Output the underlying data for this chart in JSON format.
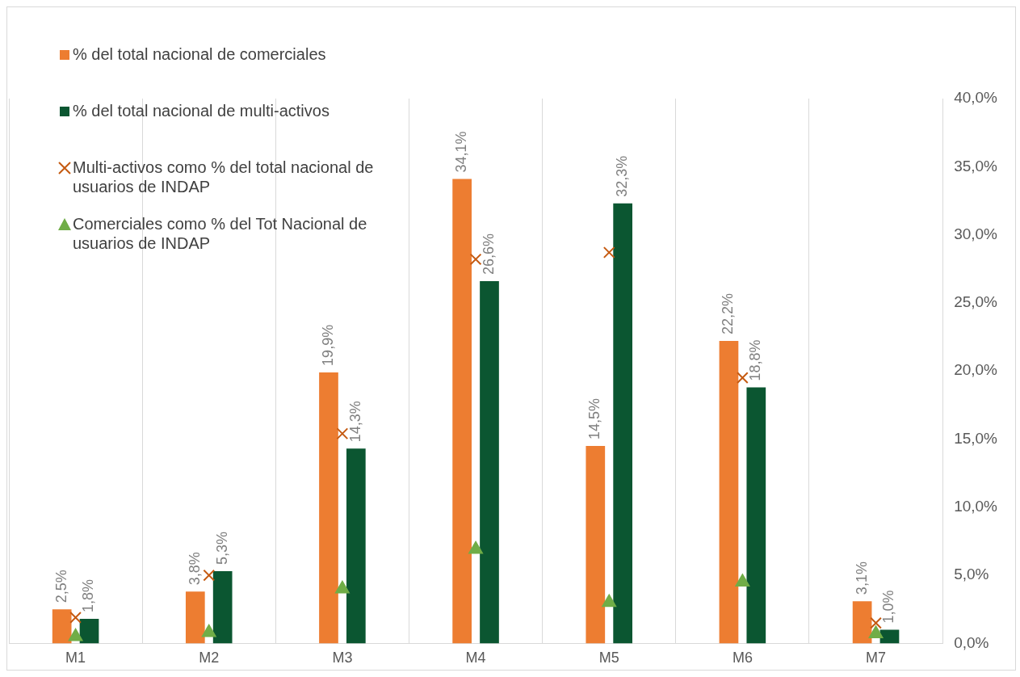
{
  "chart_data": {
    "type": "bar",
    "categories": [
      "M1",
      "M2",
      "M3",
      "M4",
      "M5",
      "M6",
      "M7"
    ],
    "series": [
      {
        "name": "% del total nacional de comerciales",
        "color": "#ed7d31",
        "values": [
          2.5,
          3.8,
          19.9,
          34.1,
          14.5,
          22.2,
          3.1
        ],
        "value_labels": [
          "2,5%",
          "3,8%",
          "19,9%",
          "34,1%",
          "14,5%",
          "22,2%",
          "3,1%"
        ]
      },
      {
        "name": "% del total nacional de multi-activos",
        "color": "#0b5631",
        "values": [
          1.8,
          5.3,
          14.3,
          26.6,
          32.3,
          18.8,
          1.0
        ],
        "value_labels": [
          "1,8%",
          "5,3%",
          "14,3%",
          "26,6%",
          "32,3%",
          "18,8%",
          "1,0%"
        ]
      },
      {
        "name": "Multi-activos como % del total nacional de usuarios de INDAP",
        "type": "scatter",
        "marker": "cross",
        "color": "#c55a11",
        "x": [
          "M1",
          "M2",
          "M3",
          "M4",
          "M5",
          "M6",
          "M7"
        ],
        "values": [
          1.9,
          5.0,
          15.4,
          28.2,
          28.7,
          19.5,
          1.5
        ]
      },
      {
        "name": "Comerciales como % del Tot Nacional de usuarios de INDAP",
        "type": "scatter",
        "marker": "triangle",
        "color": "#70ad47",
        "x": [
          "M1",
          "M2",
          "M3",
          "M4",
          "M5",
          "M6",
          "M7"
        ],
        "values": [
          0.5,
          0.8,
          4.0,
          6.9,
          3.0,
          4.5,
          0.7
        ]
      }
    ],
    "ylim": [
      0,
      40
    ],
    "yticks": [
      {
        "value": 0,
        "label": "0,0%"
      },
      {
        "value": 5,
        "label": "5,0%"
      },
      {
        "value": 10,
        "label": "10,0%"
      },
      {
        "value": 15,
        "label": "15,0%"
      },
      {
        "value": 20,
        "label": "20,0%"
      },
      {
        "value": 25,
        "label": "25,0%"
      },
      {
        "value": 30,
        "label": "30,0%"
      },
      {
        "value": 35,
        "label": "35,0%"
      },
      {
        "value": 40,
        "label": "40,0%"
      }
    ],
    "grid": "x",
    "legend": "top left"
  }
}
